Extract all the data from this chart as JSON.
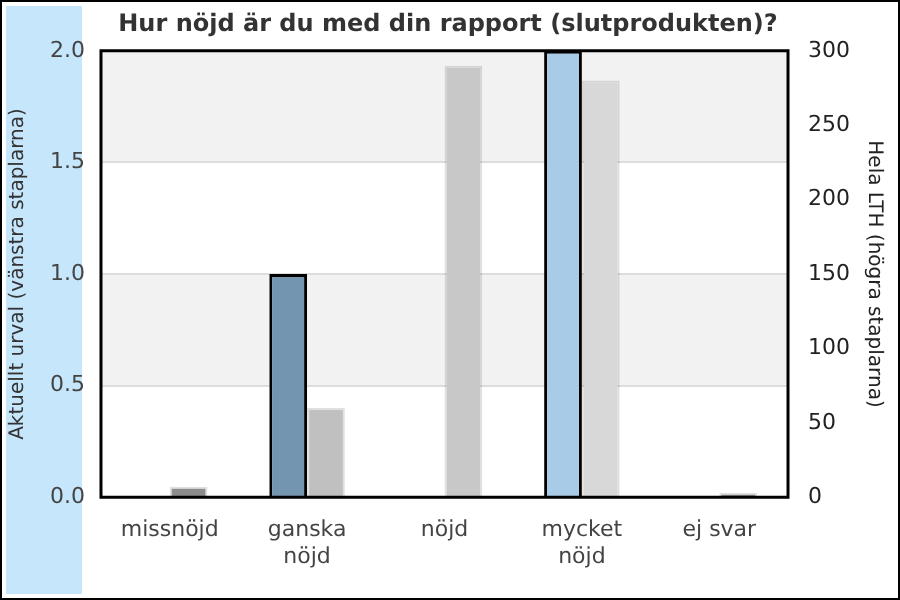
{
  "chart_data": {
    "type": "bar",
    "title": "Hur nöjd är du med din rapport (slutprodukten)?",
    "ylabel": "Aktuellt urval (vänstra staplarna)",
    "y2label": "Hela LTH (högra staplarna)",
    "categories": [
      "missnöjd",
      "ganska\nnöjd",
      "nöjd",
      "mycket\nnöjd",
      "ej svar"
    ],
    "series": [
      {
        "colors": [
          "#7395b0",
          "#7395b0",
          "#a8cce8",
          "#a8cce8",
          "#a8cce8"
        ],
        "values": [
          0,
          1,
          0,
          2,
          0
        ]
      },
      {
        "axis": "y2",
        "colors": [
          "#8c8c8c",
          "#c0c0c0",
          "#c8c8c8",
          "#d8d8d8",
          "#8c8c8c"
        ],
        "values": [
          7,
          60,
          290,
          280,
          3
        ]
      }
    ],
    "ylim": [
      0,
      2
    ],
    "yticks": [
      {
        "value": 0,
        "label": "0.0"
      },
      {
        "value": 0.5,
        "label": "0.5"
      },
      {
        "value": 1,
        "label": "1.0"
      },
      {
        "value": 1.5,
        "label": "1.5"
      },
      {
        "value": 2,
        "label": "2.0"
      }
    ],
    "y2lim": [
      0,
      300
    ],
    "y2ticks": [
      0,
      50,
      100,
      150,
      200,
      250,
      300
    ],
    "grid": "y",
    "legend": false
  }
}
